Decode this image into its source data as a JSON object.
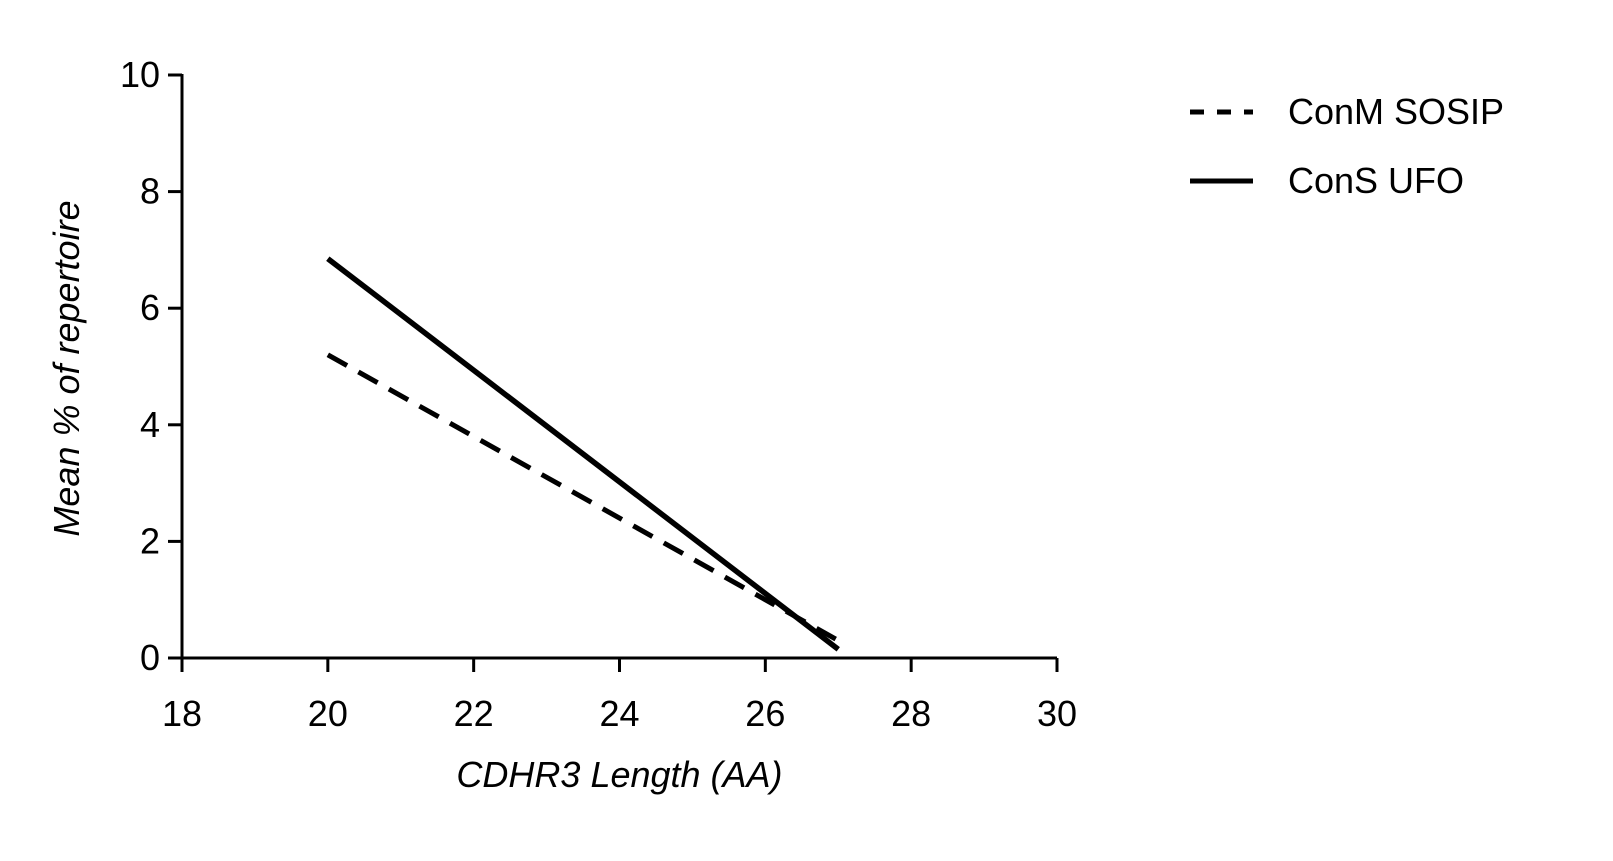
{
  "chart_data": {
    "type": "line",
    "title": "",
    "xlabel": "CDHR3 Length (AA)",
    "ylabel": "Mean % of repertoire",
    "xlim": [
      18,
      30
    ],
    "ylim": [
      0,
      10
    ],
    "xticks": [
      18,
      20,
      22,
      24,
      26,
      28,
      30
    ],
    "yticks": [
      0,
      2,
      4,
      6,
      8,
      10
    ],
    "x_tick_labels": [
      "18",
      "20",
      "22",
      "24",
      "26",
      "28",
      "30"
    ],
    "y_tick_labels": [
      "0",
      "2",
      "4",
      "6",
      "8",
      "10"
    ],
    "grid": false,
    "legend_position": "top-right",
    "series": [
      {
        "name": "ConM SOSIP",
        "style": "dashed",
        "color": "#000000",
        "x": [
          20,
          27
        ],
        "y": [
          5.2,
          0.3
        ]
      },
      {
        "name": "ConS UFO",
        "style": "solid",
        "color": "#000000",
        "x": [
          20,
          27
        ],
        "y": [
          6.85,
          0.15
        ]
      }
    ]
  }
}
